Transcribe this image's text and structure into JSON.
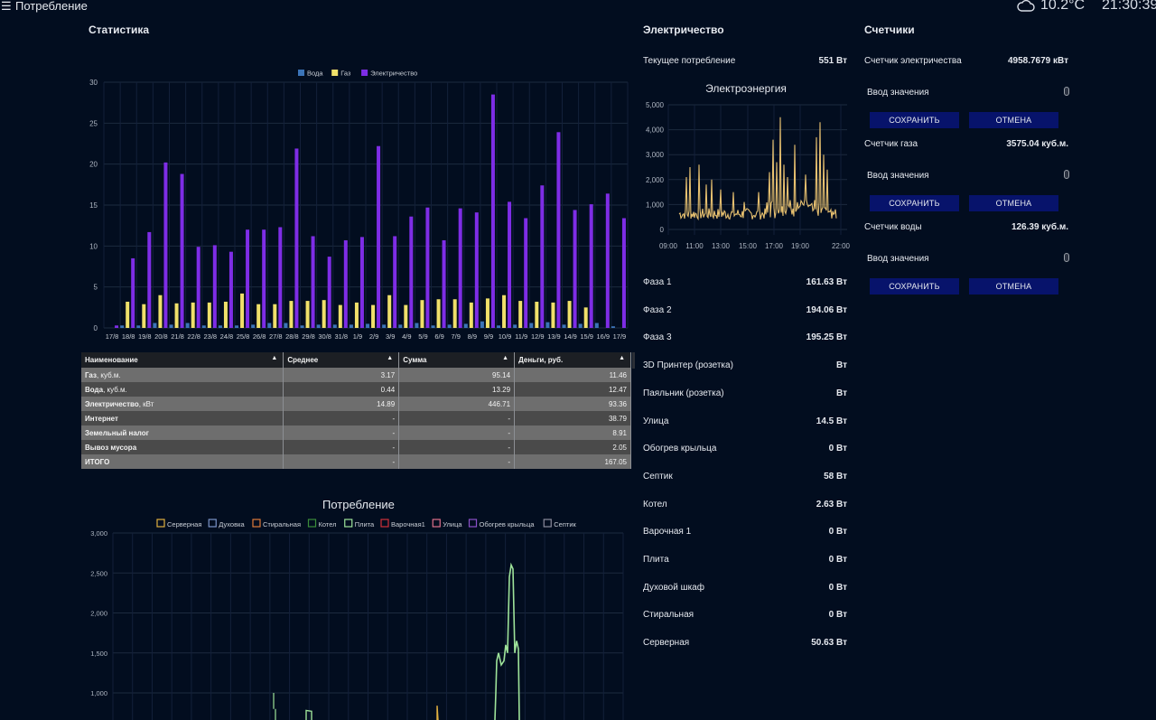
{
  "header": {
    "menu_icon": "hamburger-icon",
    "title": "Потребление",
    "weather_icon": "cloud-icon",
    "temperature": "10.2°C",
    "time": "21:30:39"
  },
  "statistics": {
    "title": "Статистика",
    "chart_data": {
      "type": "bar",
      "categories": [
        "17/8",
        "18/8",
        "19/8",
        "20/8",
        "21/8",
        "22/8",
        "23/8",
        "24/8",
        "25/8",
        "26/8",
        "27/8",
        "28/8",
        "29/8",
        "30/8",
        "31/8",
        "1/9",
        "2/9",
        "3/9",
        "4/9",
        "5/9",
        "6/9",
        "7/9",
        "8/9",
        "9/9",
        "10/9",
        "11/9",
        "12/9",
        "13/9",
        "14/9",
        "15/9",
        "16/9",
        "17/9"
      ],
      "series": [
        {
          "name": "Вода",
          "color": "#3b74b8",
          "values": [
            0,
            0.3,
            0.3,
            0.6,
            0.4,
            0.6,
            0.3,
            0.3,
            0.3,
            0.4,
            0.6,
            0.6,
            0.3,
            0.4,
            0.4,
            0.4,
            0.5,
            0.4,
            0.4,
            0.6,
            0.3,
            0.4,
            0.5,
            0.8,
            0.3,
            0.4,
            0.6,
            0.7,
            0.4,
            0.5,
            0.6,
            0.2
          ]
        },
        {
          "name": "Газ",
          "color": "#f0e06a",
          "values": [
            0,
            3.2,
            2.9,
            4.0,
            3.0,
            3.1,
            3.1,
            3.2,
            4.2,
            2.9,
            2.9,
            3.3,
            3.3,
            3.4,
            2.8,
            3.1,
            2.8,
            4.0,
            2.8,
            3.4,
            3.5,
            3.5,
            3.1,
            3.6,
            4.0,
            3.3,
            3.2,
            3.1,
            3.3,
            2.5,
            0,
            0
          ]
        },
        {
          "name": "Электричество",
          "color": "#7e2de6",
          "values": [
            0.3,
            8.5,
            11.7,
            20.2,
            18.8,
            9.9,
            10.1,
            9.3,
            12.0,
            12.0,
            12.3,
            21.9,
            11.2,
            8.7,
            10.7,
            11.1,
            22.2,
            11.2,
            13.6,
            14.7,
            10.7,
            14.6,
            14.1,
            28.5,
            15.4,
            13.4,
            17.4,
            23.9,
            14.4,
            15.1,
            16.4,
            13.4
          ]
        }
      ],
      "ylim": [
        0,
        30
      ],
      "yticks": [
        0,
        5,
        10,
        15,
        20,
        25,
        30
      ],
      "legend_position": "top-center",
      "grid": true
    }
  },
  "table": {
    "headers": [
      "Наименование",
      "Среднее",
      "Сумма",
      "Деньги, руб."
    ],
    "rows": [
      {
        "name_bold": "Газ",
        "name_rest": ", куб.м.",
        "avg": "3.17",
        "sum": "95.14",
        "money": "11.46"
      },
      {
        "name_bold": "Вода",
        "name_rest": ", куб.м.",
        "avg": "0.44",
        "sum": "13.29",
        "money": "12.47"
      },
      {
        "name_bold": "Электричество",
        "name_rest": ", кВт",
        "avg": "14.89",
        "sum": "446.71",
        "money": "93.36"
      },
      {
        "name_bold": "Интернет",
        "name_rest": "",
        "avg": "-",
        "sum": "-",
        "money": "38.79"
      },
      {
        "name_bold": "Земельный налог",
        "name_rest": "",
        "avg": "-",
        "sum": "-",
        "money": "8.91"
      },
      {
        "name_bold": "Вывоз мусора",
        "name_rest": "",
        "avg": "-",
        "sum": "-",
        "money": "2.05"
      },
      {
        "name_bold": "ИТОГО",
        "name_rest": "",
        "avg": "-",
        "sum": "-",
        "money": "167.05"
      }
    ]
  },
  "consumption": {
    "title": "Потребление",
    "chart_data": {
      "type": "line",
      "series_names": [
        "Серверная",
        "Духовка",
        "Стиральная",
        "Котел",
        "Плита",
        "Варочная1",
        "Улица",
        "Обогрев крыльца",
        "Септик"
      ],
      "series_colors": [
        "#e0b040",
        "#7a93c8",
        "#e07a3a",
        "#3a8c3a",
        "#9ee39a",
        "#d0303a",
        "#e0708a",
        "#8a50c8",
        "#8c8c9c"
      ],
      "yticks": [
        1000,
        1500,
        2000,
        2500,
        3000
      ],
      "ytick_labels": [
        "1,000",
        "1,500",
        "2,000",
        "2,500",
        "3,000"
      ],
      "plate_series": {
        "name": "Плита",
        "points": [
          [
            0.915,
            1000
          ],
          [
            0.925,
            1400
          ],
          [
            0.93,
            1500
          ],
          [
            0.94,
            1400
          ],
          [
            0.95,
            1500
          ],
          [
            0.96,
            1350
          ],
          [
            0.97,
            1500
          ],
          [
            0.975,
            2600
          ],
          [
            0.98,
            2500
          ],
          [
            0.99,
            1550
          ],
          [
            1.0,
            1500
          ],
          [
            1.0,
            1000
          ]
        ]
      },
      "grid": true
    }
  },
  "electricity": {
    "title": "Электричество",
    "current_label": "Текущее потребление",
    "current_value": "551 Вт",
    "chart_data": {
      "type": "line",
      "title": "Электроэнергия",
      "color": "#e8c170",
      "ylim": [
        0,
        5000
      ],
      "yticks": [
        0,
        1000,
        2000,
        3000,
        4000,
        5000
      ],
      "ytick_labels": [
        "0",
        "1,000",
        "2,000",
        "3,000",
        "4,000",
        "5,000"
      ],
      "xticks": [
        "09:00",
        "11:00",
        "13:00",
        "15:00",
        "17:00",
        "19:00",
        "22:00"
      ]
    },
    "items": [
      {
        "label": "Фаза 1",
        "value": "161.63 Вт"
      },
      {
        "label": "Фаза 2",
        "value": "194.06 Вт"
      },
      {
        "label": "Фаза 3",
        "value": "195.25 Вт"
      },
      {
        "label": "3D Принтер (розетка)",
        "value": "Вт"
      },
      {
        "label": "Паяльник (розетка)",
        "value": "Вт"
      },
      {
        "label": "Улица",
        "value": "14.5 Вт"
      },
      {
        "label": "Обогрев крыльца",
        "value": "0 Вт"
      },
      {
        "label": "Септик",
        "value": "58 Вт"
      },
      {
        "label": "Котел",
        "value": "2.63 Вт"
      },
      {
        "label": "Варочная 1",
        "value": "0 Вт"
      },
      {
        "label": "Плита",
        "value": "0 Вт"
      },
      {
        "label": "Духовой шкаф",
        "value": "0 Вт"
      },
      {
        "label": "Стиральная",
        "value": "0 Вт"
      },
      {
        "label": "Серверная",
        "value": "50.63 Вт"
      }
    ]
  },
  "meters": {
    "title": "Счетчики",
    "input_label": "Ввод значения",
    "save_label": "СОХРАНИТЬ",
    "cancel_label": "ОТМЕНА",
    "items": [
      {
        "label": "Счетчик электричества",
        "value": "4958.7679 кВт"
      },
      {
        "label": "Счетчик газа",
        "value": "3575.04 куб.м."
      },
      {
        "label": "Счетчик воды",
        "value": "126.39 куб.м."
      }
    ]
  }
}
